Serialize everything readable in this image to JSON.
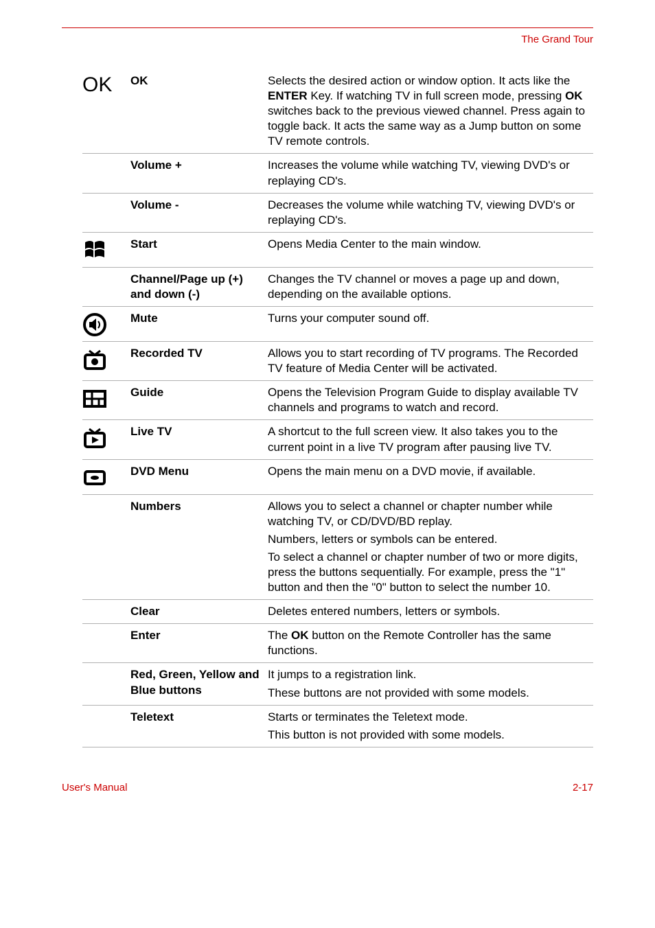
{
  "header": {
    "title": "The Grand Tour"
  },
  "rows": [
    {
      "icon": "ok-text",
      "name": "OK",
      "desc": [
        "Selects the desired action or window option. It acts like the <b>ENTER</b> Key. If watching TV in full screen mode, pressing <b>OK</b> switches back to the previous viewed channel. Press again to toggle back. It acts the same way as a Jump button on some TV remote controls."
      ]
    },
    {
      "icon": "",
      "name": "Volume +",
      "desc": [
        "Increases the volume while watching TV, viewing DVD's or replaying CD's."
      ]
    },
    {
      "icon": "",
      "name": "Volume -",
      "desc": [
        "Decreases the volume while watching TV, viewing DVD's or replaying CD's."
      ]
    },
    {
      "icon": "windows",
      "name": "Start",
      "desc": [
        "Opens Media Center to the main window."
      ]
    },
    {
      "icon": "",
      "name": "Channel/Page up (+) and down (-)",
      "desc": [
        "Changes the TV channel or moves a page up and down, depending on the available options."
      ]
    },
    {
      "icon": "mute",
      "name": "Mute",
      "desc": [
        "Turns your computer sound off."
      ]
    },
    {
      "icon": "recorded-tv",
      "name": "Recorded TV",
      "desc": [
        "Allows you to start recording of TV programs. The Recorded TV feature of Media Center will be activated."
      ]
    },
    {
      "icon": "guide",
      "name": "Guide",
      "desc": [
        "Opens the Television Program Guide to display available TV channels and programs to watch and record."
      ]
    },
    {
      "icon": "live-tv",
      "name": "Live TV",
      "desc": [
        "A shortcut to the full screen view. It also takes you to the current point in a live TV program after pausing live TV."
      ]
    },
    {
      "icon": "dvd-menu",
      "name": "DVD Menu",
      "desc": [
        "Opens the main menu on a DVD movie, if available."
      ]
    },
    {
      "icon": "",
      "name": "Numbers",
      "desc": [
        "Allows you to select a channel or chapter number while watching TV, or CD/DVD/BD replay.",
        "Numbers, letters or symbols can be entered.",
        "To select a channel or chapter number of two or more digits, press the buttons sequentially. For example, press the \"1\" button and then the \"0\" button to select the number 10."
      ]
    },
    {
      "icon": "",
      "name": "Clear",
      "desc": [
        "Deletes entered numbers, letters or symbols."
      ]
    },
    {
      "icon": "",
      "name": "Enter",
      "desc": [
        "The <b>OK</b> button on the Remote Controller has the same functions."
      ]
    },
    {
      "icon": "",
      "name": "Red, Green, Yellow and Blue buttons",
      "desc": [
        "It jumps to a registration link.",
        "These buttons are not provided with some models."
      ]
    },
    {
      "icon": "",
      "name": "Teletext",
      "desc": [
        "Starts or terminates the Teletext mode.",
        "This button is not provided with some models."
      ]
    }
  ],
  "footer": {
    "left": "User's Manual",
    "right": "2-17"
  },
  "colors": {
    "accent": "#cc0000",
    "text": "#000000",
    "rule": "#b0b0b0"
  }
}
